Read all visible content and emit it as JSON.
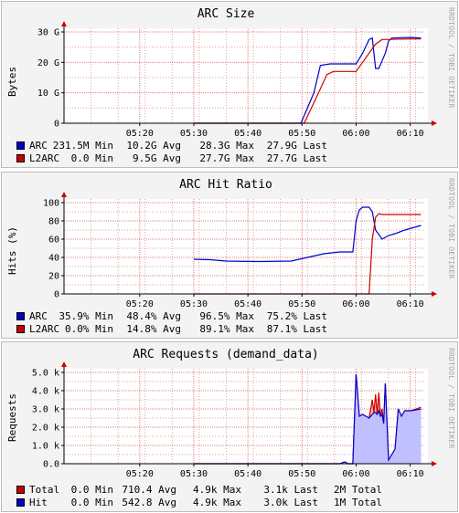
{
  "watermark": "RRDTOOL / TOBI OETIKER",
  "colors": {
    "blue": "#0000cc",
    "red": "#cc0000",
    "grid": "#e6a0a0",
    "axis": "#000000",
    "area_blue": "#c0c0ff",
    "area_red": "#ffb0b0"
  },
  "chart_data": [
    {
      "type": "line",
      "title": "ARC Size",
      "ylabel": "Bytes",
      "ylim": [
        0,
        30
      ],
      "ytick_values": [
        0,
        10,
        20,
        30
      ],
      "ytick_labels": [
        "0",
        "10 G",
        "20 G",
        "30 G"
      ],
      "xlim": [
        5.1,
        6.21
      ],
      "xtick_values": [
        5.3333,
        5.5,
        5.6667,
        5.8333,
        6.0,
        6.1667
      ],
      "xtick_labels": [
        "05:20",
        "05:30",
        "05:40",
        "05:50",
        "06:00",
        "06:10"
      ],
      "grid": true,
      "series": [
        {
          "name": "ARC",
          "color": "#0000cc",
          "fill": false,
          "x": [
            5.5,
            5.83,
            5.87,
            5.89,
            5.92,
            6.0,
            6.02,
            6.04,
            6.05,
            6.06,
            6.07,
            6.09,
            6.1,
            6.11,
            6.17,
            6.2
          ],
          "y": [
            0,
            0,
            10,
            19,
            19.5,
            19.5,
            23,
            27.5,
            28,
            18,
            18,
            23,
            27,
            28,
            28.2,
            28
          ]
        },
        {
          "name": "L2ARC",
          "color": "#cc0000",
          "fill": false,
          "x": [
            5.5,
            5.84,
            5.88,
            5.91,
            5.93,
            6.0,
            6.02,
            6.04,
            6.06,
            6.08,
            6.17,
            6.2
          ],
          "y": [
            0,
            0,
            9,
            16,
            17,
            17,
            20,
            23,
            26,
            27.5,
            27.7,
            27.7
          ]
        }
      ],
      "legend": [
        {
          "name": "ARC",
          "color": "#0000cc",
          "min": "231.5M",
          "avg": "10.2G",
          "max": "28.3G",
          "last": "27.9G"
        },
        {
          "name": "L2ARC",
          "color": "#cc0000",
          "min": "0.0",
          "avg": "9.5G",
          "max": "27.7G",
          "last": "27.7G"
        }
      ]
    },
    {
      "type": "line",
      "title": "ARC Hit Ratio",
      "ylabel": "Hits (%)",
      "ylim": [
        0,
        100
      ],
      "ytick_values": [
        0,
        20,
        40,
        60,
        80,
        100
      ],
      "ytick_labels": [
        "0",
        "20",
        "40",
        "60",
        "80",
        "100"
      ],
      "xlim": [
        5.1,
        6.21
      ],
      "xtick_values": [
        5.3333,
        5.5,
        5.6667,
        5.8333,
        6.0,
        6.1667
      ],
      "xtick_labels": [
        "05:20",
        "05:30",
        "05:40",
        "05:50",
        "06:00",
        "06:10"
      ],
      "grid": true,
      "series": [
        {
          "name": "ARC",
          "color": "#0000cc",
          "fill": false,
          "x": [
            5.5,
            5.55,
            5.6,
            5.7,
            5.8,
            5.85,
            5.9,
            5.95,
            5.99,
            6.0,
            6.01,
            6.02,
            6.04,
            6.05,
            6.06,
            6.08,
            6.1,
            6.12,
            6.15,
            6.2
          ],
          "y": [
            38,
            37.5,
            36,
            35.5,
            36,
            40,
            44,
            46,
            46,
            80,
            92,
            95,
            95,
            90,
            70,
            60,
            64,
            66,
            70,
            75
          ]
        },
        {
          "name": "L2ARC",
          "color": "#cc0000",
          "fill": false,
          "x": [
            5.5,
            6.04,
            6.05,
            6.06,
            6.07,
            6.08,
            6.1,
            6.2
          ],
          "y": [
            0,
            0,
            60,
            84,
            88,
            87,
            87,
            87
          ]
        }
      ],
      "legend": [
        {
          "name": "ARC",
          "color": "#0000cc",
          "min": "35.9%",
          "avg": "48.4%",
          "max": "96.5%",
          "last": "75.2%"
        },
        {
          "name": "L2ARC",
          "color": "#cc0000",
          "min": "0.0%",
          "avg": "14.8%",
          "max": "89.1%",
          "last": "87.1%"
        }
      ]
    },
    {
      "type": "area",
      "title": "ARC Requests (demand_data)",
      "ylabel": "Requests",
      "ylim": [
        0,
        5000
      ],
      "ytick_values": [
        0,
        1000,
        2000,
        3000,
        4000,
        5000
      ],
      "ytick_labels": [
        "0.0",
        "1.0 k",
        "2.0 k",
        "3.0 k",
        "4.0 k",
        "5.0 k"
      ],
      "xlim": [
        5.1,
        6.21
      ],
      "xtick_values": [
        5.3333,
        5.5,
        5.6667,
        5.8333,
        6.0,
        6.1667
      ],
      "xtick_labels": [
        "05:20",
        "05:30",
        "05:40",
        "05:50",
        "06:00",
        "06:10"
      ],
      "grid": true,
      "series": [
        {
          "name": "Total",
          "color": "#cc0000",
          "fill": true,
          "x": [
            5.5,
            5.95,
            5.965,
            5.975,
            5.99,
            6.0,
            6.01,
            6.02,
            6.04,
            6.05,
            6.055,
            6.06,
            6.065,
            6.07,
            6.075,
            6.08,
            6.085,
            6.09,
            6.1,
            6.12,
            6.13,
            6.14,
            6.15,
            6.17,
            6.2
          ],
          "y": [
            0,
            0,
            100,
            0,
            0,
            4900,
            2600,
            2700,
            2500,
            3500,
            2800,
            3800,
            2700,
            3900,
            2600,
            3000,
            2200,
            4400,
            200,
            800,
            3000,
            2600,
            2900,
            2900,
            3100
          ]
        },
        {
          "name": "Hit",
          "color": "#0000cc",
          "fill": true,
          "x": [
            5.5,
            5.95,
            5.965,
            5.975,
            5.99,
            6.0,
            6.01,
            6.02,
            6.04,
            6.05,
            6.055,
            6.06,
            6.065,
            6.07,
            6.075,
            6.08,
            6.085,
            6.09,
            6.1,
            6.12,
            6.13,
            6.14,
            6.15,
            6.17,
            6.2
          ],
          "y": [
            0,
            0,
            100,
            0,
            0,
            4900,
            2600,
            2700,
            2500,
            2700,
            2800,
            2800,
            2700,
            2900,
            2600,
            2700,
            2200,
            4400,
            200,
            800,
            3000,
            2600,
            2900,
            2900,
            3000
          ]
        }
      ],
      "legend": [
        {
          "name": "Total",
          "color": "#cc0000",
          "min": "0.0",
          "avg": "710.4",
          "max": "4.9k",
          "last": "3.1k",
          "total": "2M"
        },
        {
          "name": "Hit",
          "color": "#0000cc",
          "min": "0.0",
          "avg": "542.8",
          "max": "4.9k",
          "last": "3.0k",
          "total": "1M"
        }
      ]
    }
  ],
  "legend_words": {
    "min": "Min",
    "avg": "Avg",
    "max": "Max",
    "last": "Last",
    "total": "Total"
  }
}
